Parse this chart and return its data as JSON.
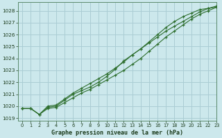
{
  "title": "Graphe pression niveau de la mer (hPa)",
  "bg_color": "#cce8ec",
  "grid_color": "#aacdd4",
  "line_color": "#2d6e2d",
  "xlim": [
    -0.5,
    23
  ],
  "ylim": [
    1018.8,
    1028.7
  ],
  "yticks": [
    1019,
    1020,
    1021,
    1022,
    1023,
    1024,
    1025,
    1026,
    1027,
    1028
  ],
  "xticks": [
    0,
    1,
    2,
    3,
    4,
    5,
    6,
    7,
    8,
    9,
    10,
    11,
    12,
    13,
    14,
    15,
    16,
    17,
    18,
    19,
    20,
    21,
    22,
    23
  ],
  "series1": {
    "x": [
      0,
      1,
      2,
      3,
      4,
      5,
      6,
      7,
      8,
      9,
      10,
      11,
      12,
      13,
      14,
      15,
      16,
      17,
      18,
      19,
      20,
      21,
      22,
      23
    ],
    "y": [
      1019.8,
      1019.8,
      1019.3,
      1019.8,
      1019.9,
      1020.3,
      1020.7,
      1021.1,
      1021.4,
      1021.8,
      1022.2,
      1022.6,
      1023.0,
      1023.5,
      1024.0,
      1024.6,
      1025.2,
      1025.8,
      1026.3,
      1026.8,
      1027.3,
      1027.7,
      1028.0,
      1028.3
    ]
  },
  "series2": {
    "x": [
      0,
      1,
      2,
      3,
      4,
      5,
      6,
      7,
      8,
      9,
      10,
      11,
      12,
      13,
      14,
      15,
      16,
      17,
      18,
      19,
      20,
      21,
      22,
      23
    ],
    "y": [
      1019.8,
      1019.8,
      1019.3,
      1019.9,
      1020.0,
      1020.5,
      1021.0,
      1021.3,
      1021.6,
      1022.0,
      1022.5,
      1023.1,
      1023.8,
      1024.3,
      1024.8,
      1025.3,
      1025.8,
      1026.3,
      1026.7,
      1027.1,
      1027.5,
      1027.9,
      1028.2,
      1028.4
    ]
  },
  "series3": {
    "x": [
      0,
      1,
      2,
      3,
      4,
      5,
      6,
      7,
      8,
      9,
      10,
      11,
      12,
      13,
      14,
      15,
      16,
      17,
      18,
      19,
      20,
      21,
      22,
      23
    ],
    "y": [
      1019.8,
      1019.8,
      1019.3,
      1020.0,
      1020.1,
      1020.6,
      1021.1,
      1021.5,
      1021.9,
      1022.3,
      1022.7,
      1023.2,
      1023.7,
      1024.3,
      1024.8,
      1025.4,
      1026.0,
      1026.6,
      1027.1,
      1027.5,
      1027.8,
      1028.1,
      1028.2,
      1028.3
    ]
  }
}
